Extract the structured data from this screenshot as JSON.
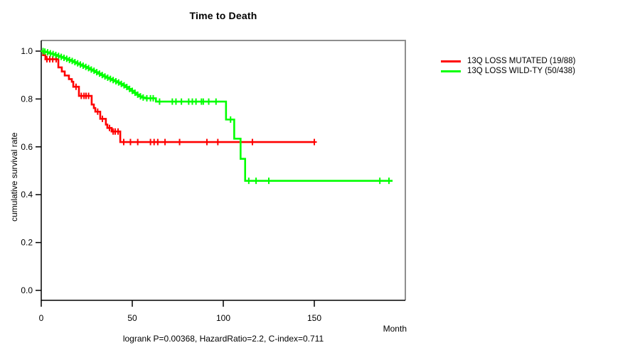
{
  "title": "Time to Death",
  "axes": {
    "y_label": "cumulative survival rate",
    "x_unit_label": "Month"
  },
  "caption": "logrank P=0.00368, HazardRatio=2.2, C-index=0.711",
  "legend": {
    "items": [
      {
        "label": "13Q LOSS MUTATED (19/88)",
        "color": "#ff0000"
      },
      {
        "label": "13Q LOSS WILD-TY (50/438)",
        "color": "#00ff00"
      }
    ]
  },
  "chart_data": {
    "type": "line",
    "subtype": "kaplan-meier-step",
    "title": "Time to Death",
    "xlabel": "Month",
    "ylabel": "cumulative survival rate",
    "xlim": [
      0,
      200
    ],
    "ylim": [
      0.0,
      1.0
    ],
    "x_ticks": [
      0,
      50,
      100,
      150
    ],
    "y_ticks": [
      0.0,
      0.2,
      0.4,
      0.6,
      0.8,
      1.0
    ],
    "grid": false,
    "legend_position": "right-outside",
    "stats": {
      "logrank_p": "0.00368",
      "hazard_ratio": "2.2",
      "c_index": "0.711"
    },
    "series": [
      {
        "name": "13Q LOSS MUTATED (19/88)",
        "events": "19/88",
        "color": "#ff0000",
        "end_month": 150,
        "steps": [
          [
            0,
            1.0
          ],
          [
            1,
            0.983
          ],
          [
            2.3,
            0.966
          ],
          [
            9.4,
            0.932
          ],
          [
            11.3,
            0.915
          ],
          [
            12.9,
            0.898
          ],
          [
            15.2,
            0.883
          ],
          [
            16.8,
            0.872
          ],
          [
            17.6,
            0.851
          ],
          [
            20.7,
            0.813
          ],
          [
            27.7,
            0.777
          ],
          [
            28.9,
            0.762
          ],
          [
            29.7,
            0.747
          ],
          [
            32.4,
            0.717
          ],
          [
            35.5,
            0.693
          ],
          [
            36.3,
            0.679
          ],
          [
            38.7,
            0.664
          ],
          [
            43.4,
            0.62
          ]
        ],
        "censors": [
          [
            3.1,
            0.966
          ],
          [
            4.7,
            0.966
          ],
          [
            6.3,
            0.966
          ],
          [
            8.2,
            0.966
          ],
          [
            19.1,
            0.851
          ],
          [
            22,
            0.813
          ],
          [
            23.5,
            0.813
          ],
          [
            24.6,
            0.813
          ],
          [
            26,
            0.813
          ],
          [
            31,
            0.747
          ],
          [
            33.6,
            0.717
          ],
          [
            37.5,
            0.679
          ],
          [
            39.5,
            0.664
          ],
          [
            40.6,
            0.664
          ],
          [
            42.2,
            0.664
          ],
          [
            45.3,
            0.62
          ],
          [
            49,
            0.62
          ],
          [
            53,
            0.62
          ],
          [
            60,
            0.62
          ],
          [
            62,
            0.62
          ],
          [
            64,
            0.62
          ],
          [
            68,
            0.62
          ],
          [
            76,
            0.62
          ],
          [
            91,
            0.62
          ],
          [
            97,
            0.62
          ],
          [
            116,
            0.62
          ],
          [
            150,
            0.62
          ]
        ]
      },
      {
        "name": "13Q LOSS WILD-TY (50/438)",
        "events": "50/438",
        "color": "#00ff00",
        "end_month": 193,
        "steps": [
          [
            0,
            1.0
          ],
          [
            1.5,
            0.998
          ],
          [
            3,
            0.995
          ],
          [
            4.5,
            0.991
          ],
          [
            6,
            0.988
          ],
          [
            7.5,
            0.984
          ],
          [
            9,
            0.98
          ],
          [
            10.5,
            0.976
          ],
          [
            12,
            0.972
          ],
          [
            13.5,
            0.968
          ],
          [
            15,
            0.963
          ],
          [
            16.5,
            0.959
          ],
          [
            18,
            0.954
          ],
          [
            19.5,
            0.949
          ],
          [
            21,
            0.944
          ],
          [
            22.5,
            0.939
          ],
          [
            24,
            0.934
          ],
          [
            25.5,
            0.929
          ],
          [
            27,
            0.923
          ],
          [
            28.5,
            0.918
          ],
          [
            30,
            0.912
          ],
          [
            31.5,
            0.906
          ],
          [
            33,
            0.9
          ],
          [
            34.5,
            0.894
          ],
          [
            36,
            0.889
          ],
          [
            37.5,
            0.884
          ],
          [
            39,
            0.879
          ],
          [
            40.5,
            0.874
          ],
          [
            42,
            0.869
          ],
          [
            43.5,
            0.863
          ],
          [
            45,
            0.857
          ],
          [
            46.5,
            0.85
          ],
          [
            48,
            0.842
          ],
          [
            49.5,
            0.834
          ],
          [
            51,
            0.826
          ],
          [
            52.5,
            0.818
          ],
          [
            54,
            0.811
          ],
          [
            55.5,
            0.806
          ],
          [
            57,
            0.803
          ],
          [
            63,
            0.789
          ],
          [
            101.5,
            0.714
          ],
          [
            106,
            0.634
          ],
          [
            109.5,
            0.55
          ],
          [
            112,
            0.458
          ]
        ],
        "censors": [
          [
            1,
            1.0
          ],
          [
            2,
            0.998
          ],
          [
            3.5,
            0.995
          ],
          [
            5,
            0.991
          ],
          [
            6.5,
            0.988
          ],
          [
            8,
            0.984
          ],
          [
            9.5,
            0.98
          ],
          [
            11,
            0.976
          ],
          [
            12.5,
            0.972
          ],
          [
            14,
            0.968
          ],
          [
            15.5,
            0.963
          ],
          [
            17,
            0.959
          ],
          [
            18.5,
            0.954
          ],
          [
            20,
            0.949
          ],
          [
            21.5,
            0.944
          ],
          [
            23,
            0.939
          ],
          [
            24.5,
            0.934
          ],
          [
            26,
            0.929
          ],
          [
            27.5,
            0.923
          ],
          [
            29,
            0.918
          ],
          [
            30.5,
            0.912
          ],
          [
            32,
            0.906
          ],
          [
            33.5,
            0.9
          ],
          [
            35,
            0.894
          ],
          [
            36.5,
            0.889
          ],
          [
            38,
            0.884
          ],
          [
            39.5,
            0.879
          ],
          [
            41,
            0.874
          ],
          [
            42.5,
            0.869
          ],
          [
            44,
            0.863
          ],
          [
            45.5,
            0.857
          ],
          [
            47,
            0.85
          ],
          [
            48.5,
            0.842
          ],
          [
            50,
            0.834
          ],
          [
            51.5,
            0.826
          ],
          [
            53,
            0.818
          ],
          [
            54.5,
            0.811
          ],
          [
            56,
            0.806
          ],
          [
            58,
            0.803
          ],
          [
            60,
            0.803
          ],
          [
            61.5,
            0.803
          ],
          [
            65,
            0.789
          ],
          [
            72,
            0.789
          ],
          [
            74,
            0.789
          ],
          [
            77,
            0.789
          ],
          [
            81,
            0.789
          ],
          [
            83,
            0.789
          ],
          [
            85,
            0.789
          ],
          [
            88,
            0.789
          ],
          [
            89,
            0.789
          ],
          [
            92,
            0.789
          ],
          [
            96,
            0.789
          ],
          [
            104,
            0.714
          ],
          [
            114,
            0.458
          ],
          [
            118,
            0.458
          ],
          [
            125,
            0.458
          ],
          [
            186,
            0.458
          ],
          [
            191,
            0.458
          ]
        ]
      }
    ]
  }
}
